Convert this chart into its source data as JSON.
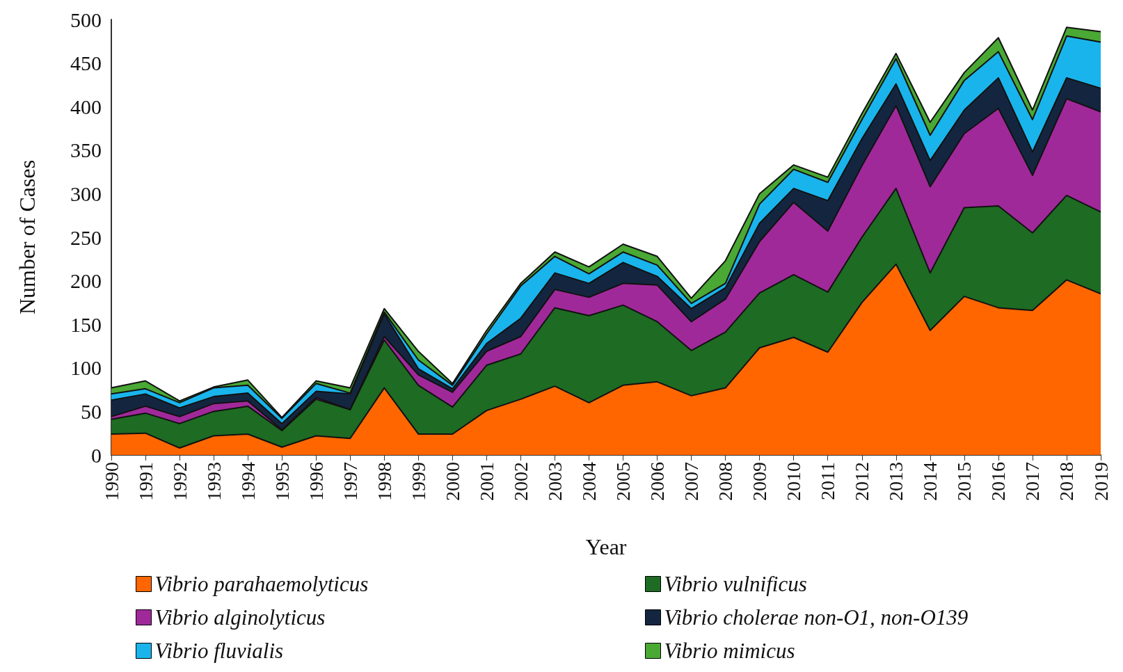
{
  "chart_data": {
    "type": "area",
    "stacked": true,
    "xlabel": "Year",
    "ylabel": "Number of Cases",
    "categories": [
      "1990",
      "1991",
      "1992",
      "1993",
      "1994",
      "1995",
      "1996",
      "1997",
      "1998",
      "1999",
      "2000",
      "2001",
      "2002",
      "2003",
      "2004",
      "2005",
      "2006",
      "2007",
      "2008",
      "2009",
      "2010",
      "2011",
      "2012",
      "2013",
      "2014",
      "2015",
      "2016",
      "2017",
      "2018",
      "2019"
    ],
    "ylim": [
      0,
      500
    ],
    "yticks": [
      0,
      50,
      100,
      150,
      200,
      250,
      300,
      350,
      400,
      450,
      500
    ],
    "grid": false,
    "legend": "bottom",
    "series": [
      {
        "name": "Vibrio parahaemolyticus",
        "color": "#ff6600",
        "values": [
          24,
          25,
          8,
          22,
          24,
          9,
          22,
          19,
          77,
          24,
          24,
          51,
          64,
          79,
          60,
          80,
          84,
          68,
          77,
          123,
          135,
          118,
          175,
          219,
          143,
          182,
          169,
          166,
          201,
          185
        ]
      },
      {
        "name": "Vibrio vulnificus",
        "color": "#1e6b23",
        "values": [
          17,
          23,
          28,
          28,
          32,
          19,
          42,
          33,
          55,
          56,
          31,
          52,
          52,
          90,
          100,
          92,
          69,
          52,
          64,
          63,
          72,
          69,
          75,
          87,
          66,
          102,
          117,
          89,
          97,
          94
        ]
      },
      {
        "name": "Vibrio alginolyticus",
        "color": "#a0299a",
        "values": [
          3,
          8,
          8,
          9,
          6,
          1,
          2,
          0,
          4,
          12,
          17,
          16,
          20,
          21,
          21,
          25,
          42,
          33,
          38,
          59,
          83,
          70,
          82,
          95,
          99,
          85,
          112,
          66,
          111,
          115
        ]
      },
      {
        "name": "Vibrio cholerae non-O1, non-O139",
        "color": "#14263f",
        "values": [
          19,
          14,
          10,
          8,
          9,
          7,
          7,
          18,
          26,
          7,
          4,
          9,
          21,
          19,
          16,
          24,
          10,
          15,
          13,
          21,
          16,
          35,
          31,
          25,
          30,
          27,
          35,
          27,
          24,
          27
        ]
      },
      {
        "name": "Vibrio fluvialis",
        "color": "#1ab4ec",
        "values": [
          7,
          6,
          6,
          10,
          9,
          6,
          9,
          1,
          2,
          10,
          4,
          11,
          37,
          19,
          11,
          12,
          13,
          6,
          5,
          22,
          22,
          21,
          22,
          29,
          29,
          34,
          30,
          37,
          48,
          53
        ]
      },
      {
        "name": "Vibrio mimicus",
        "color": "#4aa834",
        "values": [
          7,
          9,
          2,
          1,
          6,
          1,
          3,
          6,
          4,
          10,
          2,
          4,
          3,
          5,
          8,
          9,
          10,
          6,
          26,
          12,
          5,
          6,
          7,
          6,
          15,
          9,
          16,
          11,
          10,
          12
        ]
      }
    ]
  }
}
